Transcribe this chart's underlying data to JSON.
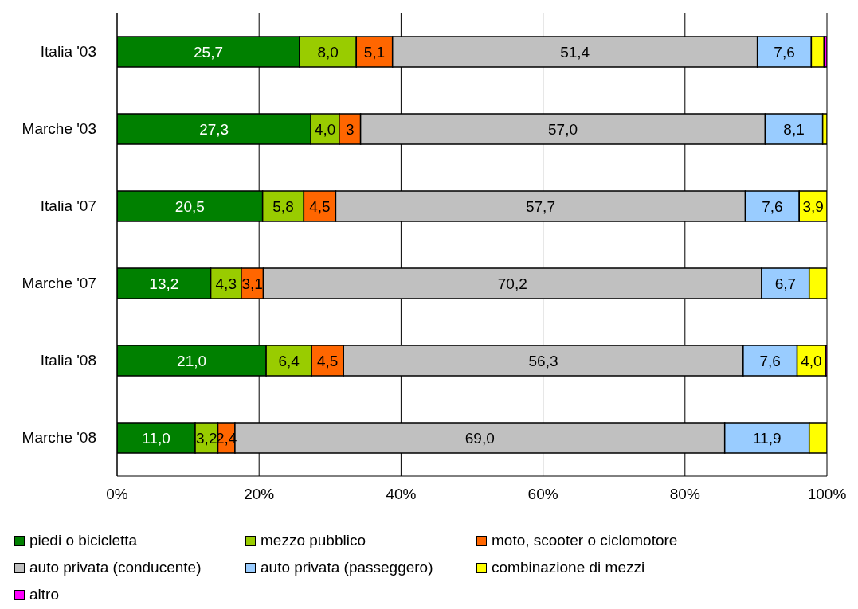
{
  "chart_data": {
    "type": "bar",
    "orientation": "horizontal",
    "stacked": true,
    "categories": [
      "Italia '03",
      "Marche '03",
      "Italia '07",
      "Marche '07",
      "Italia '08",
      "Marche '08"
    ],
    "series": [
      {
        "name": "piedi o bicicletta",
        "color": "#008000",
        "values": [
          25.7,
          27.3,
          20.5,
          13.2,
          21.0,
          11.0
        ],
        "value_labels": [
          "25,7",
          "27,3",
          "20,5",
          "13,2",
          "21,0",
          "11,0"
        ]
      },
      {
        "name": "mezzo pubblico",
        "color": "#99cc00",
        "values": [
          8.0,
          4.0,
          5.8,
          4.3,
          6.4,
          3.2
        ],
        "value_labels": [
          "8,0",
          "4,0",
          "5,8",
          "4,3",
          "6,4",
          "3,2"
        ]
      },
      {
        "name": "moto, scooter o ciclomotore",
        "color": "#ff6600",
        "values": [
          5.1,
          3,
          4.5,
          3.1,
          4.5,
          2.4
        ],
        "value_labels": [
          "5,1",
          "3",
          "4,5",
          "3,1",
          "4,5",
          "2,4"
        ]
      },
      {
        "name": "auto privata (conducente)",
        "color": "#c0c0c0",
        "values": [
          51.4,
          57.0,
          57.7,
          70.2,
          56.3,
          69.0
        ],
        "value_labels": [
          "51,4",
          "57,0",
          "57,7",
          "70,2",
          "56,3",
          "69,0"
        ]
      },
      {
        "name": "auto privata (passeggero)",
        "color": "#99ccff",
        "values": [
          7.6,
          8.1,
          7.6,
          6.7,
          7.6,
          11.9
        ],
        "value_labels": [
          "7,6",
          "8,1",
          "7,6",
          "6,7",
          "7,6",
          "11,9"
        ]
      },
      {
        "name": "combinazione di mezzi",
        "color": "#ffff00",
        "values": [
          1.8,
          0.6,
          3.9,
          2.5,
          4.0,
          2.5
        ],
        "value_labels": [
          null,
          null,
          "3,9",
          null,
          "4,0",
          null
        ]
      },
      {
        "name": "altro",
        "color": "#ff00ff",
        "values": [
          0.4,
          null,
          null,
          null,
          0.2,
          null
        ],
        "value_labels": [
          null,
          null,
          null,
          null,
          null,
          null
        ]
      }
    ],
    "xlim": [
      0,
      100
    ],
    "xticks": [
      {
        "value": 0,
        "label": "0%"
      },
      {
        "value": 20,
        "label": "20%"
      },
      {
        "value": 40,
        "label": "40%"
      },
      {
        "value": 60,
        "label": "60%"
      },
      {
        "value": 80,
        "label": "80%"
      },
      {
        "value": 100,
        "label": "100%"
      }
    ],
    "grid": "x",
    "legend": "bottom"
  }
}
